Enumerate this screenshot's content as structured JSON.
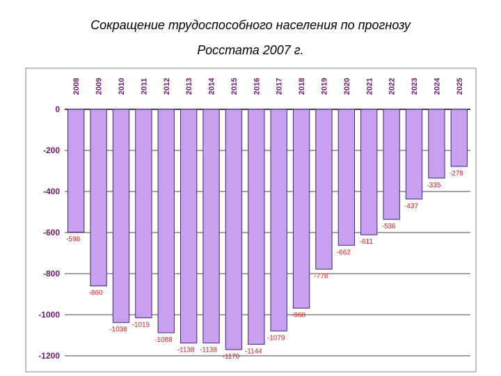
{
  "title_line1": "Сокращение трудоспособного населения по прогнозу",
  "title_line2": "Росстата 2007 г.",
  "chart_data": {
    "type": "bar",
    "title": "Сокращение трудоспособного населения по прогнозу Росстата 2007 г.",
    "categories": [
      "2008",
      "2009",
      "2010",
      "2011",
      "2012",
      "2013",
      "2014",
      "2015",
      "2016",
      "2017",
      "2018",
      "2019",
      "2020",
      "2021",
      "2022",
      "2023",
      "2024",
      "2025"
    ],
    "values": [
      -598,
      -860,
      -1038,
      -1015,
      -1088,
      -1138,
      -1138,
      -1170,
      -1144,
      -1079,
      -968,
      -778,
      -662,
      -611,
      -536,
      -437,
      -335,
      -278
    ],
    "data_labels": [
      "-598",
      "-860",
      "-1038",
      "-1015",
      "-1088",
      "-1138",
      "-1138",
      "-1170",
      "-1144",
      "-1079",
      "-968",
      "-778",
      "-662",
      "-611",
      "-536",
      "-437",
      "-335",
      "-278"
    ],
    "y_ticks": [
      "0",
      "-200",
      "-400",
      "-600",
      "-800",
      "-1000",
      "-1200"
    ],
    "y_tick_values": [
      0,
      -200,
      -400,
      -600,
      -800,
      -1000,
      -1200
    ],
    "ylim": [
      -1200,
      0
    ],
    "xlabel": "",
    "ylabel": "",
    "grid": true,
    "legend": "none",
    "bar_color": "#c9a0f0",
    "bar_edge_color": "#3a2a70",
    "label_color": "#d22020",
    "axis_text_color": "#6a1b6a"
  }
}
